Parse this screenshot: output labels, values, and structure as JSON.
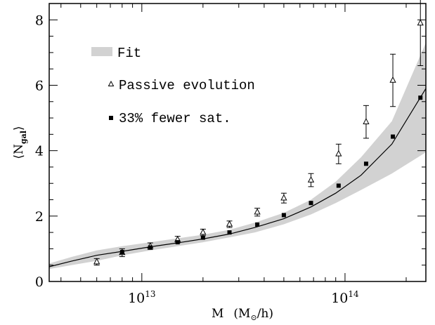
{
  "chart_data": {
    "type": "line",
    "x_scale": "log",
    "xlim": [
      3500000000000.0,
      250000000000000.0
    ],
    "ylim": [
      0,
      8.5
    ],
    "xlabel": {
      "main": "M",
      "unit_open": "(M",
      "unit_sub": "⊙",
      "unit_close": "/h)"
    },
    "ylabel": {
      "main": "⟨N",
      "sub": "gal",
      "close": "⟩"
    },
    "x_ticks": [
      {
        "value": 10000000000000.0,
        "base": "10",
        "exp": "13"
      },
      {
        "value": 100000000000000.0,
        "base": "10",
        "exp": "14"
      }
    ],
    "y_ticks": [
      {
        "value": 0,
        "label": "0"
      },
      {
        "value": 2,
        "label": "2"
      },
      {
        "value": 4,
        "label": "4"
      },
      {
        "value": 6,
        "label": "6"
      },
      {
        "value": 8,
        "label": "8"
      }
    ],
    "legend": [
      {
        "label": "Fit",
        "marker": "band"
      },
      {
        "label": "Passive evolution",
        "marker": "open-triangle"
      },
      {
        "label": "33% fewer sat.",
        "marker": "filled-square"
      }
    ],
    "series": [
      {
        "name": "Fit",
        "kind": "band",
        "color": "#d2d2d2",
        "x": [
          3500000000000.0,
          4500000000000.0,
          6000000000000.0,
          8000000000000.0,
          11000000000000.0,
          15000000000000.0,
          20000000000000.0,
          27000000000000.0,
          36000000000000.0,
          50000000000000.0,
          68000000000000.0,
          90000000000000.0,
          120000000000000.0,
          170000000000000.0,
          250000000000000.0
        ],
        "lower": [
          0.38,
          0.5,
          0.63,
          0.8,
          0.95,
          1.08,
          1.2,
          1.35,
          1.5,
          1.75,
          2.05,
          2.4,
          2.8,
          3.3,
          3.95
        ],
        "upper": [
          0.55,
          0.75,
          0.95,
          1.08,
          1.2,
          1.32,
          1.43,
          1.58,
          1.8,
          2.1,
          2.5,
          3.05,
          3.8,
          4.9,
          7.3
        ]
      },
      {
        "name": "Fit",
        "kind": "line",
        "color": "#000000",
        "x": [
          3500000000000.0,
          4500000000000.0,
          6000000000000.0,
          8000000000000.0,
          11000000000000.0,
          15000000000000.0,
          20000000000000.0,
          27000000000000.0,
          36000000000000.0,
          50000000000000.0,
          68000000000000.0,
          90000000000000.0,
          120000000000000.0,
          170000000000000.0,
          250000000000000.0
        ],
        "y": [
          0.45,
          0.62,
          0.8,
          0.92,
          1.06,
          1.18,
          1.3,
          1.45,
          1.65,
          1.92,
          2.28,
          2.7,
          3.25,
          4.2,
          5.9
        ]
      },
      {
        "name": "Passive evolution",
        "kind": "open-triangle",
        "color": "#000000",
        "x": [
          6000000000000.0,
          8000000000000.0,
          11000000000000.0,
          15000000000000.0,
          20000000000000.0,
          27000000000000.0,
          37000000000000.0,
          50000000000000.0,
          68000000000000.0,
          93000000000000.0,
          127000000000000.0,
          172000000000000.0,
          235000000000000.0
        ],
        "y": [
          0.6,
          0.88,
          1.08,
          1.28,
          1.5,
          1.75,
          2.12,
          2.55,
          3.1,
          3.9,
          4.88,
          6.15,
          7.9
        ],
        "yerr": [
          0.1,
          0.12,
          0.1,
          0.1,
          0.1,
          0.1,
          0.12,
          0.15,
          0.2,
          0.3,
          0.5,
          0.8,
          1.3
        ]
      },
      {
        "name": "33% fewer sat.",
        "kind": "filled-square",
        "color": "#000000",
        "x": [
          8000000000000.0,
          11000000000000.0,
          15000000000000.0,
          20000000000000.0,
          27000000000000.0,
          37000000000000.0,
          50000000000000.0,
          68000000000000.0,
          93000000000000.0,
          127000000000000.0,
          172000000000000.0,
          235000000000000.0
        ],
        "y": [
          0.9,
          1.04,
          1.2,
          1.34,
          1.5,
          1.74,
          2.03,
          2.4,
          2.93,
          3.6,
          4.43,
          5.62
        ]
      }
    ]
  }
}
